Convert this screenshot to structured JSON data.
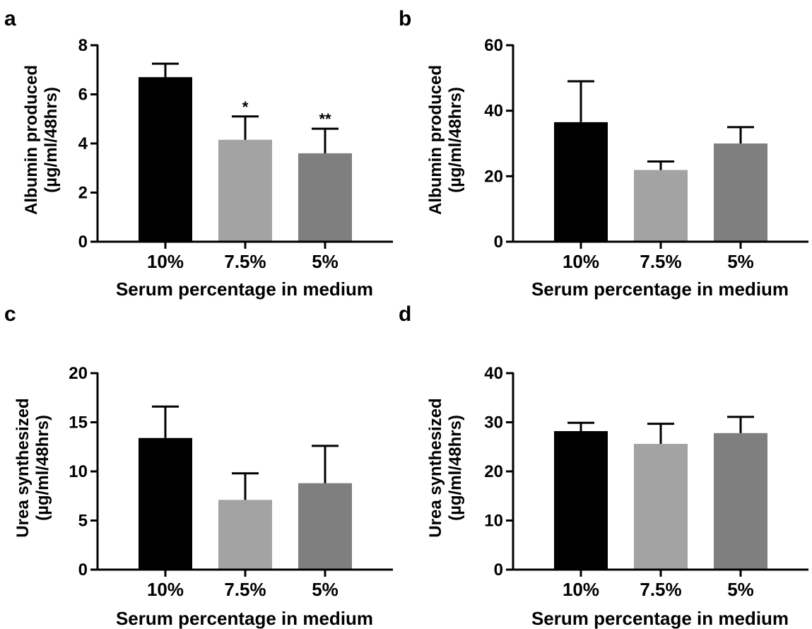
{
  "figure": {
    "background": "#ffffff",
    "axis_color": "#000000"
  },
  "chart_data": [
    {
      "panel": "a",
      "type": "bar",
      "categories": [
        "10%",
        "7.5%",
        "5%"
      ],
      "values": [
        6.7,
        4.15,
        3.6
      ],
      "errors": [
        0.55,
        0.95,
        1.0
      ],
      "significance": [
        "",
        "*",
        "**"
      ],
      "bar_colors": [
        "#000000",
        "#a3a3a3",
        "#7f7f7f"
      ],
      "ylabel": [
        "Albumin produced",
        "(µg/ml/48hrs)"
      ],
      "xlabel": "Serum percentage in medium",
      "ylim": [
        0,
        8
      ],
      "yticks": [
        0,
        2,
        4,
        6,
        8
      ],
      "grid": false,
      "legend": "none"
    },
    {
      "panel": "b",
      "type": "bar",
      "categories": [
        "10%",
        "7.5%",
        "5%"
      ],
      "values": [
        36.5,
        21.9,
        30
      ],
      "errors": [
        12.5,
        2.6,
        5
      ],
      "significance": [
        "",
        "",
        ""
      ],
      "bar_colors": [
        "#000000",
        "#a3a3a3",
        "#7f7f7f"
      ],
      "ylabel": [
        "Albumin produced",
        "(µg/ml/48hrs)"
      ],
      "xlabel": "Serum percentage in medium",
      "ylim": [
        0,
        60
      ],
      "yticks": [
        0,
        20,
        40,
        60
      ],
      "grid": false,
      "legend": "none"
    },
    {
      "panel": "c",
      "type": "bar",
      "categories": [
        "10%",
        "7.5%",
        "5%"
      ],
      "values": [
        13.4,
        7.1,
        8.8
      ],
      "errors": [
        3.2,
        2.7,
        3.8
      ],
      "significance": [
        "",
        "",
        ""
      ],
      "bar_colors": [
        "#000000",
        "#a3a3a3",
        "#7f7f7f"
      ],
      "ylabel": [
        "Urea synthesized",
        "(µg/ml/48hrs)"
      ],
      "xlabel": "Serum percentage in medium",
      "ylim": [
        0,
        20
      ],
      "yticks": [
        0,
        5,
        10,
        15,
        20
      ],
      "grid": false,
      "legend": "none"
    },
    {
      "panel": "d",
      "type": "bar",
      "categories": [
        "10%",
        "7.5%",
        "5%"
      ],
      "values": [
        28.2,
        25.6,
        27.8
      ],
      "errors": [
        1.7,
        4.1,
        3.3
      ],
      "significance": [
        "",
        "",
        ""
      ],
      "bar_colors": [
        "#000000",
        "#a3a3a3",
        "#7f7f7f"
      ],
      "ylabel": [
        "Urea synthesized",
        "(µg/ml/48hrs)"
      ],
      "xlabel": "Serum percentage in medium",
      "ylim": [
        0,
        40
      ],
      "yticks": [
        0,
        10,
        20,
        30,
        40
      ],
      "grid": false,
      "legend": "none"
    }
  ]
}
